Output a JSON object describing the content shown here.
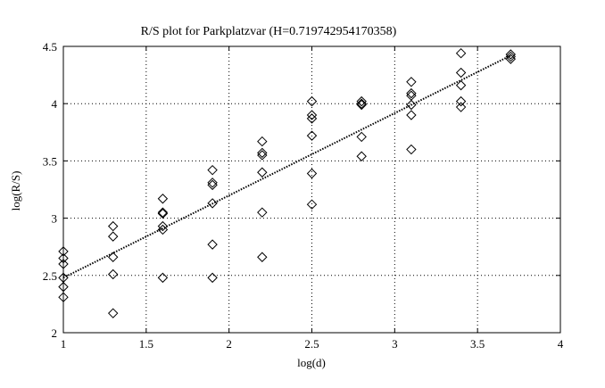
{
  "chart_data": {
    "type": "scatter",
    "title": "R/S plot for Parkplatzvar (H=0.719742954170358)",
    "xlabel": "log(d)",
    "ylabel": "log(R/S)",
    "xlim": [
      1,
      4
    ],
    "ylim": [
      2,
      4.5
    ],
    "x_ticks": [
      1,
      1.5,
      2,
      2.5,
      3,
      3.5,
      4
    ],
    "x_tick_labels": [
      "1",
      "1.5",
      "2",
      "2.5",
      "3",
      "3.5",
      "4"
    ],
    "y_ticks": [
      2,
      2.5,
      3,
      3.5,
      4,
      4.5
    ],
    "y_tick_labels": [
      "2",
      "2.5",
      "3",
      "3.5",
      "4",
      "4.5"
    ],
    "grid": true,
    "marker": "diamond",
    "points": [
      {
        "x": 1.0,
        "y": 2.71
      },
      {
        "x": 1.0,
        "y": 2.65
      },
      {
        "x": 1.0,
        "y": 2.6
      },
      {
        "x": 1.0,
        "y": 2.48
      },
      {
        "x": 1.0,
        "y": 2.4
      },
      {
        "x": 1.0,
        "y": 2.31
      },
      {
        "x": 1.3,
        "y": 2.93
      },
      {
        "x": 1.3,
        "y": 2.84
      },
      {
        "x": 1.3,
        "y": 2.66
      },
      {
        "x": 1.3,
        "y": 2.51
      },
      {
        "x": 1.3,
        "y": 2.17
      },
      {
        "x": 1.6,
        "y": 3.17
      },
      {
        "x": 1.6,
        "y": 3.05
      },
      {
        "x": 1.6,
        "y": 3.04
      },
      {
        "x": 1.6,
        "y": 2.93
      },
      {
        "x": 1.6,
        "y": 2.9
      },
      {
        "x": 1.6,
        "y": 2.48
      },
      {
        "x": 1.9,
        "y": 3.42
      },
      {
        "x": 1.9,
        "y": 3.31
      },
      {
        "x": 1.9,
        "y": 3.29
      },
      {
        "x": 1.9,
        "y": 3.13
      },
      {
        "x": 1.9,
        "y": 2.77
      },
      {
        "x": 1.9,
        "y": 2.48
      },
      {
        "x": 2.2,
        "y": 3.67
      },
      {
        "x": 2.2,
        "y": 3.57
      },
      {
        "x": 2.2,
        "y": 3.55
      },
      {
        "x": 2.2,
        "y": 3.4
      },
      {
        "x": 2.2,
        "y": 3.05
      },
      {
        "x": 2.2,
        "y": 2.66
      },
      {
        "x": 2.5,
        "y": 4.02
      },
      {
        "x": 2.5,
        "y": 3.9
      },
      {
        "x": 2.5,
        "y": 3.87
      },
      {
        "x": 2.5,
        "y": 3.72
      },
      {
        "x": 2.5,
        "y": 3.39
      },
      {
        "x": 2.5,
        "y": 3.12
      },
      {
        "x": 2.8,
        "y": 4.02
      },
      {
        "x": 2.8,
        "y": 4.0
      },
      {
        "x": 2.8,
        "y": 3.99
      },
      {
        "x": 2.8,
        "y": 3.71
      },
      {
        "x": 2.8,
        "y": 3.54
      },
      {
        "x": 3.1,
        "y": 4.19
      },
      {
        "x": 3.1,
        "y": 4.09
      },
      {
        "x": 3.1,
        "y": 4.07
      },
      {
        "x": 3.1,
        "y": 3.99
      },
      {
        "x": 3.1,
        "y": 3.9
      },
      {
        "x": 3.1,
        "y": 3.6
      },
      {
        "x": 3.4,
        "y": 4.44
      },
      {
        "x": 3.4,
        "y": 4.27
      },
      {
        "x": 3.4,
        "y": 4.16
      },
      {
        "x": 3.4,
        "y": 4.02
      },
      {
        "x": 3.4,
        "y": 3.97
      },
      {
        "x": 3.7,
        "y": 4.43
      },
      {
        "x": 3.7,
        "y": 4.41
      },
      {
        "x": 3.7,
        "y": 4.39
      }
    ],
    "fit_line": {
      "style": "dotted",
      "x": [
        1,
        3.7
      ],
      "y": [
        2.48,
        4.42
      ]
    }
  }
}
